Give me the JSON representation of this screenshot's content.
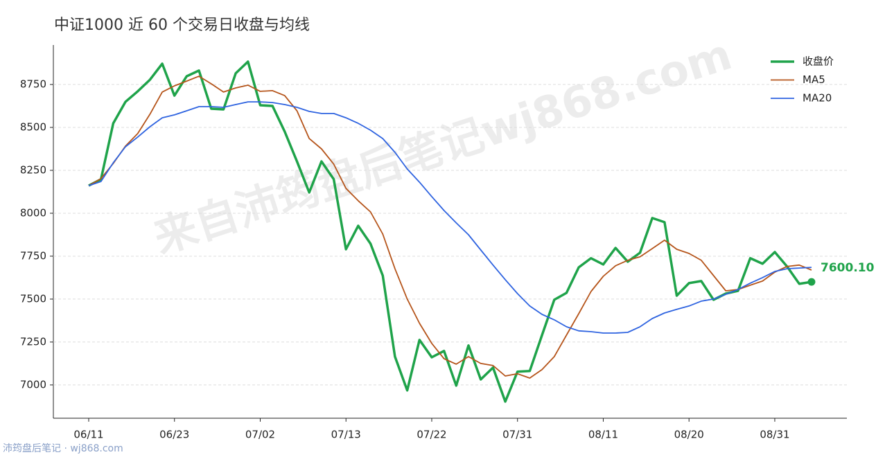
{
  "chart_data": {
    "type": "line",
    "title": "中证1000 近 60 个交易日收盘与均线",
    "watermark": "来自沛筠盘后笔记wj868.com",
    "footer": "沛筠盘后笔记 · wj868.com",
    "categories": [
      "06/11",
      null,
      null,
      null,
      null,
      null,
      null,
      "06/23",
      null,
      null,
      null,
      null,
      null,
      null,
      "07/02",
      null,
      null,
      null,
      null,
      null,
      null,
      "07/13",
      null,
      null,
      null,
      null,
      null,
      null,
      "07/22",
      null,
      null,
      null,
      null,
      null,
      null,
      "07/31",
      null,
      null,
      null,
      null,
      null,
      null,
      "08/11",
      null,
      null,
      null,
      null,
      null,
      null,
      "08/20",
      null,
      null,
      null,
      null,
      null,
      null,
      "08/31",
      null,
      null,
      null
    ],
    "ylim": [
      6806,
      8980
    ],
    "yticks": [
      7000,
      7250,
      7500,
      7750,
      8000,
      8250,
      8500,
      8750
    ],
    "grid": true,
    "legend": "top-right",
    "series": [
      {
        "name": "收盘价",
        "color": "#1fa34a",
        "width": 3.5,
        "values": [
          8161,
          8198,
          8524,
          8649,
          8710,
          8778,
          8871,
          8685,
          8798,
          8831,
          8609,
          8605,
          8815,
          8883,
          8629,
          8625,
          8476,
          8302,
          8121,
          8302,
          8198,
          7790,
          7927,
          7823,
          7637,
          7165,
          6968,
          7262,
          7161,
          7198,
          6996,
          7230,
          7032,
          7101,
          6903,
          7077,
          7081,
          7290,
          7496,
          7536,
          7685,
          7738,
          7702,
          7798,
          7718,
          7770,
          7972,
          7948,
          7520,
          7593,
          7605,
          7496,
          7532,
          7548,
          7738,
          7706,
          7774,
          7690,
          7589,
          7600.1
        ],
        "value_labels": [
          null,
          null,
          null,
          null,
          null,
          null,
          null,
          null,
          null,
          null,
          null,
          null,
          null,
          null,
          null,
          null,
          null,
          null,
          null,
          null,
          null,
          null,
          null,
          null,
          null,
          null,
          null,
          null,
          null,
          null,
          null,
          null,
          null,
          null,
          null,
          null,
          null,
          null,
          null,
          null,
          null,
          null,
          null,
          null,
          null,
          null,
          null,
          null,
          null,
          null,
          null,
          null,
          null,
          null,
          null,
          null,
          null,
          null,
          null,
          "7600.10"
        ]
      },
      {
        "name": "MA5",
        "color": "#b5541a",
        "width": 1.8,
        "values": [
          8161,
          8202,
          8290,
          8391,
          8464,
          8577,
          8706,
          8742,
          8770,
          8798,
          8754,
          8706,
          8730,
          8746,
          8710,
          8714,
          8685,
          8597,
          8435,
          8375,
          8286,
          8145,
          8073,
          8008,
          7879,
          7677,
          7500,
          7359,
          7242,
          7153,
          7121,
          7165,
          7125,
          7113,
          7052,
          7065,
          7040,
          7089,
          7165,
          7290,
          7415,
          7544,
          7633,
          7694,
          7726,
          7746,
          7794,
          7843,
          7790,
          7766,
          7726,
          7637,
          7548,
          7556,
          7581,
          7605,
          7657,
          7690,
          7698,
          7669
        ]
      },
      {
        "name": "MA20",
        "color": "#2e63e0",
        "width": 1.8,
        "values": [
          8161,
          8185,
          8294,
          8387,
          8444,
          8504,
          8556,
          8573,
          8597,
          8621,
          8621,
          8617,
          8633,
          8649,
          8649,
          8645,
          8633,
          8617,
          8593,
          8581,
          8581,
          8556,
          8524,
          8484,
          8435,
          8355,
          8258,
          8181,
          8097,
          8016,
          7944,
          7875,
          7786,
          7698,
          7613,
          7532,
          7460,
          7411,
          7379,
          7339,
          7315,
          7310,
          7302,
          7302,
          7306,
          7339,
          7387,
          7419,
          7440,
          7460,
          7488,
          7500,
          7528,
          7556,
          7593,
          7625,
          7661,
          7677,
          7681,
          7685
        ]
      }
    ]
  }
}
